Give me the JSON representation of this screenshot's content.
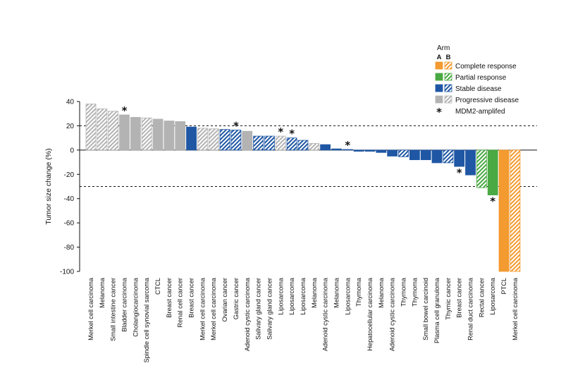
{
  "chart_data": {
    "type": "bar",
    "title": "",
    "xlabel": "",
    "ylabel": "Tumor size change (%)",
    "ylim": [
      -100,
      40
    ],
    "yticks": [
      40,
      20,
      0,
      -20,
      -40,
      -60,
      -80,
      -100
    ],
    "thresholds": [
      20,
      -30
    ],
    "legend": {
      "title": "Arm",
      "arm_labels": [
        "A",
        "B"
      ],
      "entries": [
        {
          "key": "CR",
          "label": "Complete response",
          "color": "#f39a30"
        },
        {
          "key": "PR",
          "label": "Partial response",
          "color": "#4aa943"
        },
        {
          "key": "SD",
          "label": "Stable disease",
          "color": "#1f57a4"
        },
        {
          "key": "PD",
          "label": "Progressive disease",
          "color": "#b3b3b3"
        }
      ],
      "marker_label": "MDM2-amplifed",
      "marker_symbol": "*"
    },
    "bars": [
      {
        "label": "Merkel cell carcinoma",
        "value": 38,
        "response": "PD",
        "arm": "B",
        "mdm2": false
      },
      {
        "label": "Melanoma",
        "value": 34,
        "response": "PD",
        "arm": "B",
        "mdm2": false
      },
      {
        "label": "Small intestine cancer",
        "value": 32,
        "response": "PD",
        "arm": "B",
        "mdm2": false
      },
      {
        "label": "Bladder carcinoma",
        "value": 29,
        "response": "PD",
        "arm": "A",
        "mdm2": true
      },
      {
        "label": "Cholangiocarcinoma",
        "value": 27,
        "response": "PD",
        "arm": "A",
        "mdm2": false
      },
      {
        "label": "Spindle cell synovial sarcoma",
        "value": 26.5,
        "response": "PD",
        "arm": "B",
        "mdm2": false
      },
      {
        "label": "CTCL",
        "value": 25.5,
        "response": "PD",
        "arm": "A",
        "mdm2": false
      },
      {
        "label": "Breast cancer",
        "value": 24,
        "response": "PD",
        "arm": "A",
        "mdm2": false
      },
      {
        "label": "Renal cell cancer",
        "value": 23.5,
        "response": "PD",
        "arm": "A",
        "mdm2": false
      },
      {
        "label": "Breast cancer",
        "value": 19,
        "response": "SD",
        "arm": "A",
        "mdm2": false
      },
      {
        "label": "Merkel cell carcinoma",
        "value": 18,
        "response": "PD",
        "arm": "B",
        "mdm2": false
      },
      {
        "label": "Merkel cell carcinoma",
        "value": 17.5,
        "response": "PD",
        "arm": "B",
        "mdm2": false
      },
      {
        "label": "Ovarian cancer",
        "value": 17,
        "response": "SD",
        "arm": "B",
        "mdm2": false
      },
      {
        "label": "Gastric cancer",
        "value": 16.5,
        "response": "SD",
        "arm": "B",
        "mdm2": true
      },
      {
        "label": "Adenoid cystic carcinoma",
        "value": 15.5,
        "response": "PD",
        "arm": "A",
        "mdm2": false
      },
      {
        "label": "Salivary gland cancer",
        "value": 11.5,
        "response": "SD",
        "arm": "B",
        "mdm2": false
      },
      {
        "label": "Salivary gland cancer",
        "value": 11.5,
        "response": "SD",
        "arm": "B",
        "mdm2": false
      },
      {
        "label": "Liposarcoma",
        "value": 11.5,
        "response": "PD",
        "arm": "B",
        "mdm2": true
      },
      {
        "label": "Liposarcoma",
        "value": 10,
        "response": "SD",
        "arm": "B",
        "mdm2": true
      },
      {
        "label": "Liposarcoma",
        "value": 8,
        "response": "SD",
        "arm": "B",
        "mdm2": false
      },
      {
        "label": "Melanoma",
        "value": 5.5,
        "response": "PD",
        "arm": "B",
        "mdm2": false
      },
      {
        "label": "Adenoid cystic carcinoma",
        "value": 4.5,
        "response": "SD",
        "arm": "A",
        "mdm2": false
      },
      {
        "label": "Melanoma",
        "value": 1,
        "response": "SD",
        "arm": "A",
        "mdm2": false
      },
      {
        "label": "Liposarcoma",
        "value": 0.5,
        "response": "SD",
        "arm": "A",
        "mdm2": true
      },
      {
        "label": "Thymoma",
        "value": -1,
        "response": "SD",
        "arm": "A",
        "mdm2": false
      },
      {
        "label": "Hepatocellular carcinoma",
        "value": -1,
        "response": "SD",
        "arm": "A",
        "mdm2": false
      },
      {
        "label": "Melanoma",
        "value": -2,
        "response": "SD",
        "arm": "A",
        "mdm2": false
      },
      {
        "label": "Adenoid cystic carcinoma",
        "value": -5,
        "response": "SD",
        "arm": "A",
        "mdm2": false
      },
      {
        "label": "Thymoma",
        "value": -5.5,
        "response": "SD",
        "arm": "B",
        "mdm2": false
      },
      {
        "label": "Thymoma",
        "value": -8,
        "response": "SD",
        "arm": "A",
        "mdm2": false
      },
      {
        "label": "Small bowel carcinoid",
        "value": -8,
        "response": "SD",
        "arm": "A",
        "mdm2": false
      },
      {
        "label": "Plasma cell granuloma",
        "value": -10.5,
        "response": "SD",
        "arm": "A",
        "mdm2": false
      },
      {
        "label": "Thymic cancer",
        "value": -10.5,
        "response": "SD",
        "arm": "B",
        "mdm2": false
      },
      {
        "label": "Breast cancer",
        "value": -13.5,
        "response": "SD",
        "arm": "A",
        "mdm2": true
      },
      {
        "label": "Renal duct carcinoma",
        "value": -20.5,
        "response": "SD",
        "arm": "A",
        "mdm2": false
      },
      {
        "label": "Rectal cancer",
        "value": -31,
        "response": "PR",
        "arm": "B",
        "mdm2": false
      },
      {
        "label": "Liposarcoma",
        "value": -37,
        "response": "PR",
        "arm": "A",
        "mdm2": true
      },
      {
        "label": "PTCL",
        "value": -100,
        "response": "CR",
        "arm": "A",
        "mdm2": false
      },
      {
        "label": "Merkel cell carcinoma",
        "value": -100,
        "response": "CR",
        "arm": "B",
        "mdm2": false
      }
    ]
  }
}
